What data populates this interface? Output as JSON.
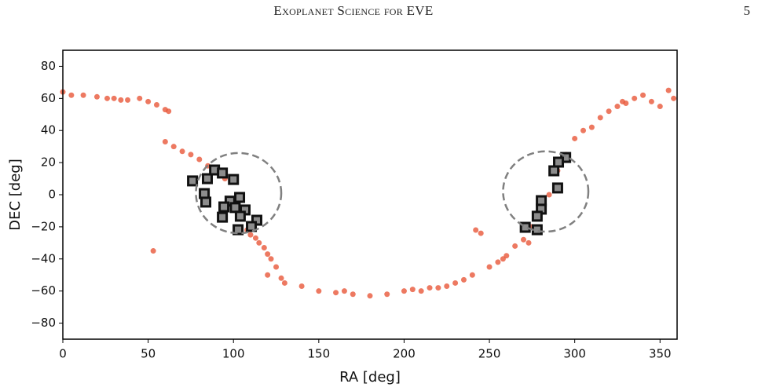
{
  "header": {
    "title": "Exoplanet Science for EVE",
    "page": "5"
  },
  "chart_data": {
    "type": "scatter",
    "xlabel": "RA [deg]",
    "ylabel": "DEC [deg]",
    "xlim": [
      0,
      360
    ],
    "ylim": [
      -90,
      90
    ],
    "xticks": [
      0,
      50,
      100,
      150,
      200,
      250,
      300,
      350
    ],
    "yticks": [
      {
        "value": -80,
        "label": "−80"
      },
      {
        "value": -60,
        "label": "−60"
      },
      {
        "value": -40,
        "label": "−40"
      },
      {
        "value": -20,
        "label": "−20"
      },
      0,
      20,
      40,
      60,
      80
    ],
    "series": [
      {
        "color": "#e8583a",
        "marker": "o",
        "x": [
          0,
          5,
          12,
          20,
          26,
          30,
          34,
          38,
          45,
          50,
          55,
          60,
          62,
          60,
          65,
          70,
          75,
          80,
          85,
          95,
          100,
          108,
          110,
          113,
          115,
          118,
          120,
          122,
          125,
          120,
          128,
          130,
          140,
          150,
          160,
          165,
          170,
          180,
          190,
          200,
          205,
          210,
          215,
          220,
          225,
          230,
          235,
          240,
          242,
          245,
          250,
          255,
          258,
          260,
          265,
          270,
          273,
          275,
          280,
          285,
          290,
          295,
          300,
          305,
          310,
          315,
          320,
          325,
          328,
          330,
          335,
          340,
          345,
          350,
          355,
          358,
          53
        ],
        "y": [
          64,
          62,
          62,
          61,
          60,
          60,
          59,
          59,
          60,
          58,
          56,
          53,
          52,
          33,
          30,
          27,
          25,
          22,
          18,
          10,
          -5,
          -22,
          -25,
          -27,
          -30,
          -33,
          -37,
          -40,
          -45,
          -50,
          -52,
          -55,
          -57,
          -60,
          -61,
          -60,
          -62,
          -63,
          -62,
          -60,
          -59,
          -60,
          -58,
          -58,
          -57,
          -55,
          -53,
          -50,
          -22,
          -24,
          -45,
          -42,
          -40,
          -38,
          -32,
          -28,
          -30,
          -20,
          -10,
          0,
          15,
          25,
          35,
          40,
          42,
          48,
          52,
          55,
          58,
          57,
          60,
          62,
          58,
          55,
          65,
          60,
          -35
        ]
      },
      {
        "color": "#8c8c8c",
        "edgecolor": "#111111",
        "marker": "s",
        "x": [
          76,
          84.7,
          88.9,
          93.5,
          100,
          82.9,
          83.8,
          103.6,
          98,
          94.4,
          101,
          106.8,
          93.5,
          104,
          113.7,
          110.5,
          102.7,
          294.7,
          290.5,
          287.8,
          290,
          280.4,
          280.4,
          278,
          271,
          278
        ],
        "y": [
          8.6,
          10,
          15.4,
          13.5,
          9.5,
          0.7,
          -4.6,
          -1.7,
          -4,
          -7.6,
          -8,
          -9.5,
          -14,
          -13.4,
          -15.9,
          -19.8,
          -21.8,
          23.2,
          20.3,
          14.9,
          4.2,
          -3.7,
          -9,
          -13.4,
          -20.3,
          -21.8
        ]
      }
    ],
    "circles": [
      {
        "x": 103,
        "y": 1,
        "r": 25
      },
      {
        "x": 283,
        "y": 2,
        "r": 25
      }
    ],
    "circle_color": "#808080"
  }
}
